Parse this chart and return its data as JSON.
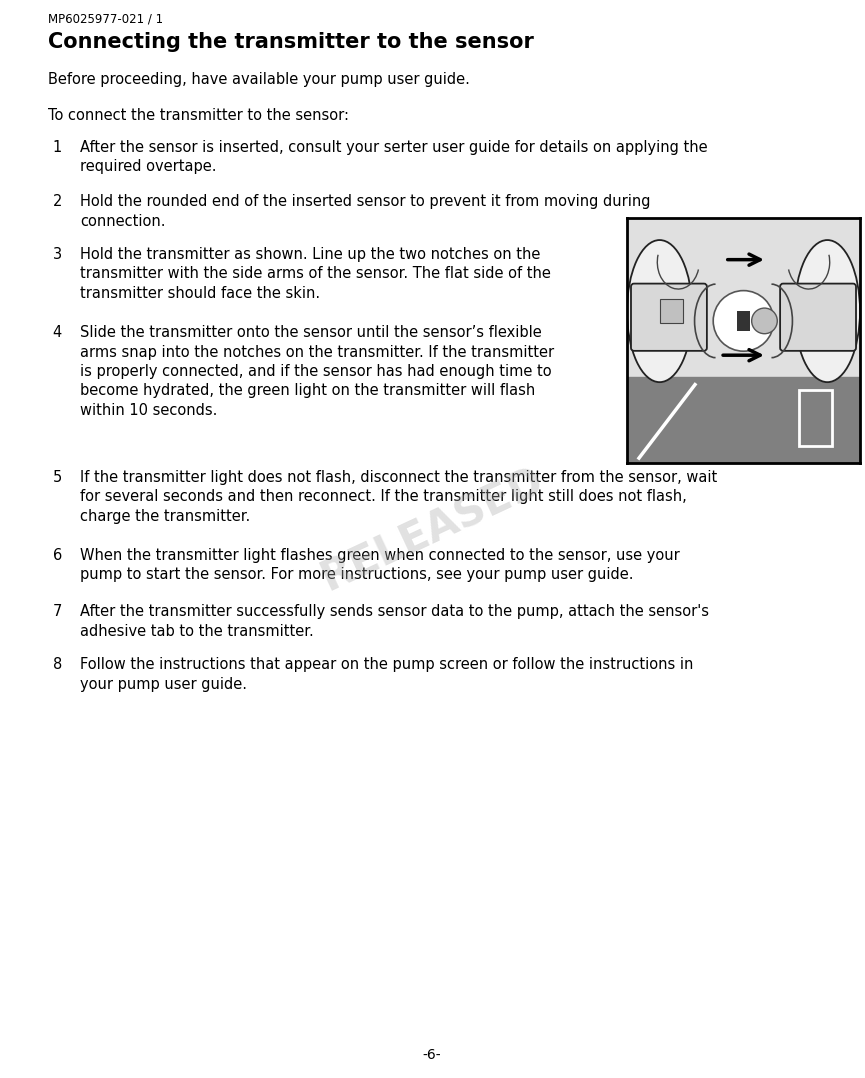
{
  "page_label": "MP6025977-021 / 1",
  "title": "Connecting the transmitter to the sensor",
  "subtitle": "Before proceeding, have available your pump user guide.",
  "intro": "To connect the transmitter to the sensor:",
  "items": [
    {
      "num": "1",
      "line1": "After the sensor is inserted, consult your serter user guide for details on applying the",
      "line2": "required overtape."
    },
    {
      "num": "2",
      "line1": "Hold the rounded end of the inserted sensor to prevent it from moving during",
      "line2": "connection."
    },
    {
      "num": "3",
      "line1": "Hold the transmitter as shown. Line up the two notches on the",
      "line2": "transmitter with the side arms of the sensor. The flat side of the",
      "line3": "transmitter should face the skin."
    },
    {
      "num": "4",
      "line1": "Slide the transmitter onto the sensor until the sensor’s flexible",
      "line2": "arms snap into the notches on the transmitter. If the transmitter",
      "line3": "is properly connected, and if the sensor has had enough time to",
      "line4": "become hydrated, the green light on the transmitter will flash",
      "line5": "within 10 seconds."
    },
    {
      "num": "5",
      "line1": "If the transmitter light does not flash, disconnect the transmitter from the sensor, wait",
      "line2": "for several seconds and then reconnect. If the transmitter light still does not flash,",
      "line3": "charge the transmitter."
    },
    {
      "num": "6",
      "line1": "When the transmitter light flashes green when connected to the sensor, use your",
      "line2": "pump to start the sensor. For more instructions, see your pump user guide."
    },
    {
      "num": "7",
      "line1": "After the transmitter successfully sends sensor data to the pump, attach the sensor's",
      "line2": "adhesive tab to the transmitter."
    },
    {
      "num": "8",
      "line1": "Follow the instructions that appear on the pump screen or follow the instructions in",
      "line2": "your pump user guide."
    }
  ],
  "footer": "-6-",
  "watermark": "RELEASED",
  "bg_color": "#ffffff",
  "text_color": "#000000"
}
